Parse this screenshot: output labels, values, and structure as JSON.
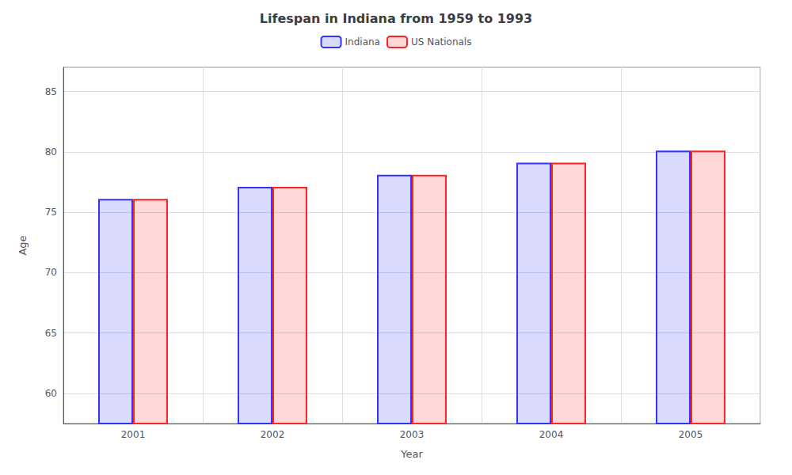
{
  "chart_data": {
    "type": "bar",
    "title": "Lifespan in Indiana from 1959 to 1993",
    "xlabel": "Year",
    "ylabel": "Age",
    "categories": [
      "2001",
      "2002",
      "2003",
      "2004",
      "2005"
    ],
    "series": [
      {
        "name": "Indiana",
        "color": "#3333ff",
        "values": [
          76.1,
          77.1,
          78.1,
          79.1,
          80.1
        ]
      },
      {
        "name": "US Nationals",
        "color": "#ff2222",
        "values": [
          76.1,
          77.1,
          78.1,
          79.1,
          80.1
        ]
      }
    ],
    "ylim": [
      57.5,
      87
    ],
    "yticks": [
      60,
      65,
      70,
      75,
      80,
      85
    ],
    "grid": true,
    "legend": "top"
  }
}
